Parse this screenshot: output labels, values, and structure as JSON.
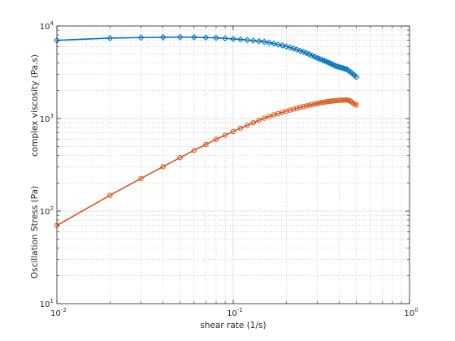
{
  "chart_data": {
    "type": "line",
    "xscale": "log",
    "yscale": "log",
    "xlim": [
      0.01,
      1
    ],
    "ylim": [
      10,
      10000
    ],
    "grid": true,
    "minor_grid": true,
    "xlabel": "shear rate (1/s)",
    "ylabel_top": "complex viscosity (Pa.s)",
    "ylabel_bottom": "Oscillation Stress (Pa)",
    "x_ticks": [
      {
        "base": "10",
        "exp": "-2",
        "value": 0.01
      },
      {
        "base": "10",
        "exp": "-1",
        "value": 0.1
      },
      {
        "base": "10",
        "exp": "0",
        "value": 1
      }
    ],
    "y_ticks": [
      {
        "base": "10",
        "exp": "1",
        "value": 10
      },
      {
        "base": "10",
        "exp": "2",
        "value": 100
      },
      {
        "base": "10",
        "exp": "3",
        "value": 1000
      },
      {
        "base": "10",
        "exp": "4",
        "value": 10000
      }
    ],
    "colors": {
      "viscosity": "#0072BD",
      "stress": "#D95319",
      "grid": "#b0b0b0",
      "axis": "#262626"
    },
    "series": [
      {
        "marker": "diamond",
        "color": "#0072BD",
        "x": [
          0.01,
          0.02,
          0.03,
          0.04,
          0.05,
          0.06,
          0.07,
          0.08,
          0.09,
          0.1,
          0.11,
          0.12,
          0.13,
          0.14,
          0.15,
          0.16,
          0.17,
          0.18,
          0.19,
          0.2,
          0.21,
          0.22,
          0.23,
          0.24,
          0.25,
          0.26,
          0.27,
          0.28,
          0.29,
          0.3,
          0.31,
          0.32,
          0.33,
          0.34,
          0.35,
          0.36,
          0.37,
          0.38,
          0.39,
          0.4,
          0.41,
          0.42,
          0.43,
          0.44,
          0.45,
          0.46,
          0.47,
          0.48,
          0.49,
          0.5
        ],
        "y": [
          7000,
          7400,
          7500,
          7550,
          7580,
          7550,
          7500,
          7450,
          7350,
          7250,
          7150,
          7050,
          6950,
          6850,
          6750,
          6600,
          6450,
          6300,
          6150,
          6000,
          5850,
          5700,
          5550,
          5400,
          5250,
          5100,
          4950,
          4800,
          4650,
          4500,
          4400,
          4300,
          4200,
          4100,
          4000,
          3900,
          3800,
          3700,
          3650,
          3600,
          3550,
          3500,
          3450,
          3400,
          3300,
          3200,
          3100,
          3000,
          2900,
          2800
        ]
      },
      {
        "marker": "circle",
        "color": "#D95319",
        "x": [
          0.01,
          0.02,
          0.03,
          0.04,
          0.05,
          0.06,
          0.07,
          0.08,
          0.09,
          0.1,
          0.11,
          0.12,
          0.13,
          0.14,
          0.15,
          0.16,
          0.17,
          0.18,
          0.19,
          0.2,
          0.21,
          0.22,
          0.23,
          0.24,
          0.25,
          0.26,
          0.27,
          0.28,
          0.29,
          0.3,
          0.31,
          0.32,
          0.33,
          0.34,
          0.35,
          0.36,
          0.37,
          0.38,
          0.39,
          0.4,
          0.41,
          0.42,
          0.43,
          0.44,
          0.45,
          0.46,
          0.47,
          0.48,
          0.49,
          0.5
        ],
        "y": [
          70,
          148,
          225,
          302,
          378,
          453,
          525,
          596,
          662,
          725,
          786,
          845,
          902,
          958,
          1010,
          1055,
          1095,
          1130,
          1165,
          1200,
          1235,
          1265,
          1295,
          1320,
          1345,
          1370,
          1395,
          1415,
          1435,
          1455,
          1475,
          1490,
          1505,
          1520,
          1532,
          1542,
          1552,
          1560,
          1566,
          1572,
          1578,
          1582,
          1585,
          1588,
          1575,
          1550,
          1510,
          1460,
          1430,
          1400
        ]
      }
    ]
  }
}
